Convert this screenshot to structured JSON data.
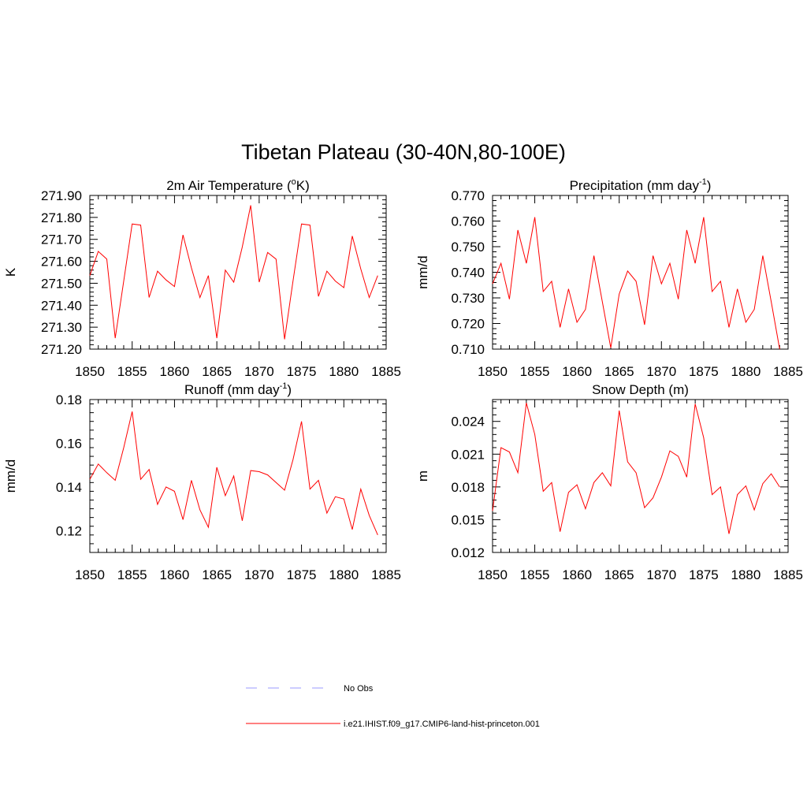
{
  "main_title": "Tibetan Plateau (30-40N,80-100E)",
  "legend": {
    "obs_label": "No Obs",
    "obs_color": "#9999ff",
    "model_label": "i.e21.IHIST.f09_g17.CMIP6-land-hist-princeton.001",
    "model_color": "#ff0000"
  },
  "chart_data": [
    {
      "type": "line",
      "title": "2m Air Temperature (",
      "title_sup": "o",
      "title_post": "K)",
      "ylabel": "K",
      "xlim": [
        1850,
        1885
      ],
      "ylim": [
        271.2,
        271.9
      ],
      "xticks": [
        1850,
        1855,
        1860,
        1865,
        1870,
        1875,
        1880,
        1885
      ],
      "yticks": [
        271.2,
        271.3,
        271.4,
        271.5,
        271.6,
        271.7,
        271.8,
        271.9
      ],
      "ytick_labels": [
        "271.20",
        "271.30",
        "271.40",
        "271.50",
        "271.60",
        "271.70",
        "271.80",
        "271.90"
      ],
      "x": [
        1850,
        1851,
        1852,
        1853,
        1854,
        1855,
        1856,
        1857,
        1858,
        1859,
        1860,
        1861,
        1862,
        1863,
        1864,
        1865,
        1866,
        1867,
        1868,
        1869,
        1870,
        1871,
        1872,
        1873,
        1874,
        1875,
        1876,
        1877,
        1878,
        1879,
        1880,
        1881,
        1882,
        1883,
        1884
      ],
      "values": [
        271.535,
        271.645,
        271.61,
        271.25,
        271.51,
        271.77,
        271.765,
        271.435,
        271.555,
        271.515,
        271.485,
        271.72,
        271.57,
        271.435,
        271.535,
        271.25,
        271.56,
        271.505,
        271.665,
        271.855,
        271.505,
        271.64,
        271.61,
        271.245,
        271.51,
        271.77,
        271.765,
        271.44,
        271.555,
        271.51,
        271.48,
        271.715,
        271.565,
        271.435,
        271.535
      ]
    },
    {
      "type": "line",
      "title": "Precipitation (mm day",
      "title_sup": "-1",
      "title_post": ")",
      "ylabel": "mm/d",
      "xlim": [
        1850,
        1885
      ],
      "ylim": [
        0.71,
        0.77
      ],
      "xticks": [
        1850,
        1855,
        1860,
        1865,
        1870,
        1875,
        1880,
        1885
      ],
      "yticks": [
        0.71,
        0.72,
        0.73,
        0.74,
        0.75,
        0.76,
        0.77
      ],
      "ytick_labels": [
        "0.710",
        "0.720",
        "0.730",
        "0.740",
        "0.750",
        "0.760",
        "0.770"
      ],
      "x": [
        1850,
        1851,
        1852,
        1853,
        1854,
        1855,
        1856,
        1857,
        1858,
        1859,
        1860,
        1861,
        1862,
        1863,
        1864,
        1865,
        1866,
        1867,
        1868,
        1869,
        1870,
        1871,
        1872,
        1873,
        1874,
        1875,
        1876,
        1877,
        1878,
        1879,
        1880,
        1881,
        1882,
        1883,
        1884
      ],
      "values": [
        0.7355,
        0.7435,
        0.7295,
        0.7565,
        0.7435,
        0.7615,
        0.7325,
        0.7365,
        0.7185,
        0.7335,
        0.7205,
        0.7255,
        0.7465,
        0.7285,
        0.7105,
        0.7315,
        0.7405,
        0.7365,
        0.7195,
        0.7465,
        0.7355,
        0.7435,
        0.7295,
        0.7565,
        0.7435,
        0.7615,
        0.7325,
        0.7365,
        0.7185,
        0.7335,
        0.7205,
        0.7255,
        0.7465,
        0.7285,
        0.71
      ]
    },
    {
      "type": "line",
      "title": "Runoff (mm day",
      "title_sup": "-1",
      "title_post": ")",
      "ylabel": "mm/d",
      "xlim": [
        1850,
        1885
      ],
      "ylim": [
        0.11,
        0.18
      ],
      "xticks": [
        1850,
        1855,
        1860,
        1865,
        1870,
        1875,
        1880,
        1885
      ],
      "yticks": [
        0.12,
        0.14,
        0.16,
        0.18
      ],
      "ytick_labels": [
        "0.12",
        "0.14",
        "0.16",
        "0.18"
      ],
      "x": [
        1850,
        1851,
        1852,
        1853,
        1854,
        1855,
        1856,
        1857,
        1858,
        1859,
        1860,
        1861,
        1862,
        1863,
        1864,
        1865,
        1866,
        1867,
        1868,
        1869,
        1870,
        1871,
        1872,
        1873,
        1874,
        1875,
        1876,
        1877,
        1878,
        1879,
        1880,
        1881,
        1882,
        1883,
        1884
      ],
      "values": [
        0.1435,
        0.1505,
        0.1465,
        0.143,
        0.158,
        0.1745,
        0.1435,
        0.148,
        0.132,
        0.14,
        0.138,
        0.125,
        0.143,
        0.1295,
        0.1215,
        0.149,
        0.136,
        0.145,
        0.1245,
        0.1475,
        0.147,
        0.1455,
        0.142,
        0.1385,
        0.1525,
        0.17,
        0.139,
        0.143,
        0.128,
        0.1355,
        0.1345,
        0.1205,
        0.139,
        0.127,
        0.118
      ]
    },
    {
      "type": "line",
      "title": "Snow Depth (m)",
      "title_sup": "",
      "title_post": "",
      "ylabel": "m",
      "xlim": [
        1850,
        1885
      ],
      "ylim": [
        0.012,
        0.026
      ],
      "xticks": [
        1850,
        1855,
        1860,
        1865,
        1870,
        1875,
        1880,
        1885
      ],
      "yticks": [
        0.012,
        0.015,
        0.018,
        0.021,
        0.024
      ],
      "ytick_labels": [
        "0.012",
        "0.015",
        "0.018",
        "0.021",
        "0.024"
      ],
      "x": [
        1850,
        1851,
        1852,
        1853,
        1854,
        1855,
        1856,
        1857,
        1858,
        1859,
        1860,
        1861,
        1862,
        1863,
        1864,
        1865,
        1866,
        1867,
        1868,
        1869,
        1870,
        1871,
        1872,
        1873,
        1874,
        1875,
        1876,
        1877,
        1878,
        1879,
        1880,
        1881,
        1882,
        1883,
        1884
      ],
      "values": [
        0.0158,
        0.0216,
        0.0212,
        0.0193,
        0.0257,
        0.0228,
        0.0176,
        0.0184,
        0.0139,
        0.0175,
        0.0182,
        0.016,
        0.0184,
        0.0193,
        0.0181,
        0.025,
        0.0203,
        0.0193,
        0.0161,
        0.017,
        0.0189,
        0.0213,
        0.0208,
        0.0189,
        0.0256,
        0.0225,
        0.0173,
        0.018,
        0.0137,
        0.0173,
        0.0181,
        0.0159,
        0.0183,
        0.0192,
        0.018
      ]
    }
  ]
}
